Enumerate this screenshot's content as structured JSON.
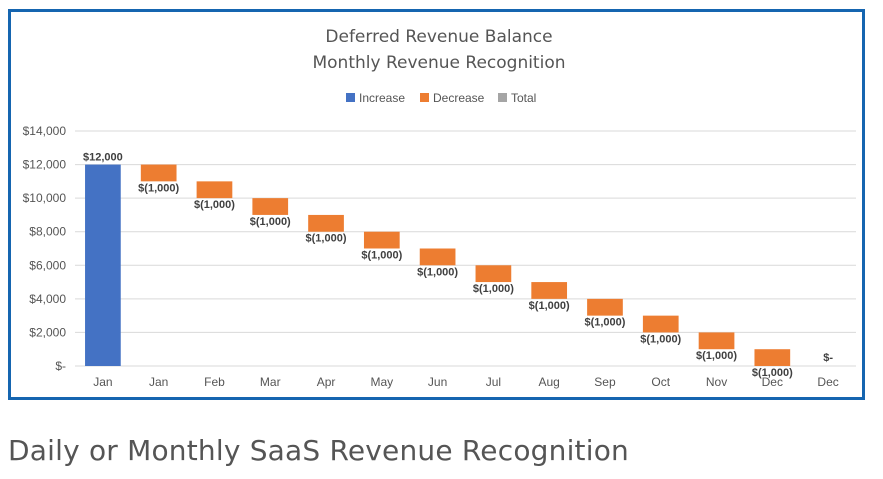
{
  "chart_data": {
    "type": "bar",
    "subtype": "waterfall",
    "title": "Deferred Revenue Balance",
    "subtitle": "Monthly Revenue Recognition",
    "legend": [
      {
        "name": "Increase",
        "color": "#4472c4"
      },
      {
        "name": "Decrease",
        "color": "#ed7d31"
      },
      {
        "name": "Total",
        "color": "#a5a5a5"
      }
    ],
    "legend_position": "top",
    "categories": [
      "Jan",
      "Jan",
      "Feb",
      "Mar",
      "Apr",
      "May",
      "Jun",
      "Jul",
      "Aug",
      "Sep",
      "Oct",
      "Nov",
      "Dec",
      "Dec"
    ],
    "values": [
      12000,
      -1000,
      -1000,
      -1000,
      -1000,
      -1000,
      -1000,
      -1000,
      -1000,
      -1000,
      -1000,
      -1000,
      -1000,
      0
    ],
    "data_labels": [
      "$12,000",
      "$(1,000)",
      "$(1,000)",
      "$(1,000)",
      "$(1,000)",
      "$(1,000)",
      "$(1,000)",
      "$(1,000)",
      "$(1,000)",
      "$(1,000)",
      "$(1,000)",
      "$(1,000)",
      "$(1,000)",
      "$-"
    ],
    "y_ticks": [
      0,
      2000,
      4000,
      6000,
      8000,
      10000,
      12000,
      14000
    ],
    "y_tick_labels": [
      "$-",
      "$2,000",
      "$4,000",
      "$6,000",
      "$8,000",
      "$10,000",
      "$12,000",
      "$14,000"
    ],
    "ylim": [
      0,
      14000
    ],
    "xlabel": "",
    "ylabel": "",
    "grid": true
  },
  "caption": "Daily or Monthly SaaS Revenue Recognition"
}
